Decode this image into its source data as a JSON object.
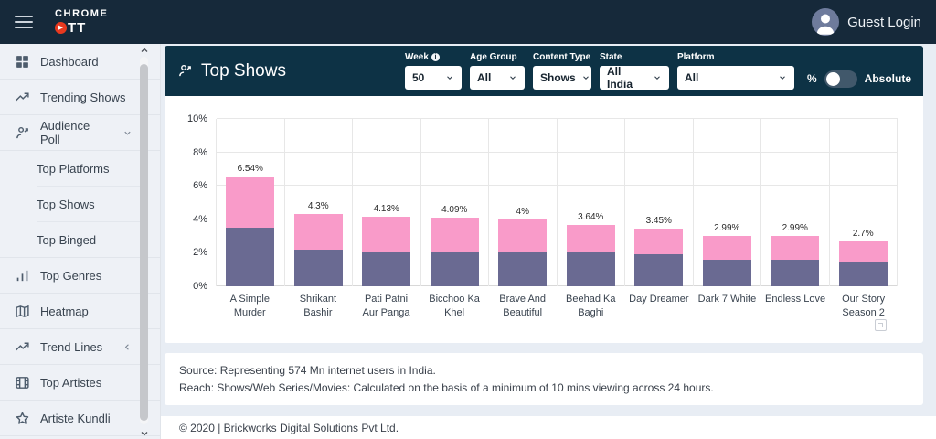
{
  "app": {
    "logo_line1": "CHROME",
    "logo_line2": "TT",
    "user_label": "Guest Login"
  },
  "sidebar": {
    "items": [
      {
        "label": "Dashboard",
        "icon": "dashboard-grid-icon"
      },
      {
        "label": "Trending Shows",
        "icon": "trending-up-icon"
      },
      {
        "label": "Audience Poll",
        "icon": "audience-icon",
        "chevron": "down"
      },
      {
        "label": "Top Platforms",
        "sub": true
      },
      {
        "label": "Top Shows",
        "sub": true
      },
      {
        "label": "Top Binged",
        "sub": true
      },
      {
        "label": "Top Genres",
        "icon": "bar-chart-icon"
      },
      {
        "label": "Heatmap",
        "icon": "map-icon"
      },
      {
        "label": "Trend Lines",
        "icon": "trending-up-icon",
        "chevron": "left"
      },
      {
        "label": "Top Artistes",
        "icon": "film-icon"
      },
      {
        "label": "Artiste Kundli",
        "icon": "star-icon"
      }
    ]
  },
  "panel": {
    "title": "Top Shows",
    "filters": [
      {
        "label": "Week",
        "value": "50",
        "info": true
      },
      {
        "label": "Age Group",
        "value": "All"
      },
      {
        "label": "Content Type",
        "value": "Shows"
      },
      {
        "label": "State",
        "value": "All India"
      },
      {
        "label": "Platform",
        "value": "All"
      }
    ],
    "toggle": {
      "left_label": "%",
      "right_label": "Absolute",
      "state": "percent"
    }
  },
  "chart_data": {
    "type": "bar",
    "stacked": true,
    "title": "Top Shows",
    "categories": [
      "A Simple Murder",
      "Shrikant Bashir",
      "Pati Patni Aur Panga",
      "Bicchoo Ka Khel",
      "Brave And Beautiful",
      "Beehad Ka Baghi",
      "Day Dreamer",
      "Dark 7 White",
      "Endless Love",
      "Our Story Season 2"
    ],
    "series": [
      {
        "name": "segment_bottom",
        "color": "#6a6a92",
        "values": [
          3.5,
          2.2,
          2.1,
          2.1,
          2.1,
          2.0,
          1.9,
          1.6,
          1.6,
          1.45
        ]
      },
      {
        "name": "segment_top",
        "color": "#f99bc9",
        "values": [
          3.04,
          2.1,
          2.03,
          1.99,
          1.9,
          1.64,
          1.55,
          1.39,
          1.39,
          1.25
        ]
      }
    ],
    "totals": [
      6.54,
      4.3,
      4.13,
      4.09,
      4.0,
      3.64,
      3.45,
      2.99,
      2.99,
      2.7
    ],
    "total_labels": [
      "6.54%",
      "4.3%",
      "4.13%",
      "4.09%",
      "4%",
      "3.64%",
      "3.45%",
      "2.99%",
      "2.99%",
      "2.7%"
    ],
    "yticks": [
      "0%",
      "2%",
      "4%",
      "6%",
      "8%",
      "10%"
    ],
    "ylim": [
      0,
      10
    ],
    "grid": true,
    "legend": "none"
  },
  "footer": {
    "source_line1": "Source: Representing 574 Mn internet users in India.",
    "source_line2": "Reach: Shows/Web Series/Movies: Calculated on the basis of a minimum of 10 mins viewing across 24 hours.",
    "copyright": "© 2020 | Brickworks Digital Solutions Pvt Ltd."
  },
  "colors": {
    "topbar_bg": "#16293a",
    "panel_header_bg": "#0d3245",
    "sidebar_bg": "#eef1f6",
    "content_bg": "#e8edf4",
    "bar_top": "#f99bc9",
    "bar_bottom": "#6a6a92",
    "logo_accent": "#e8391f"
  }
}
